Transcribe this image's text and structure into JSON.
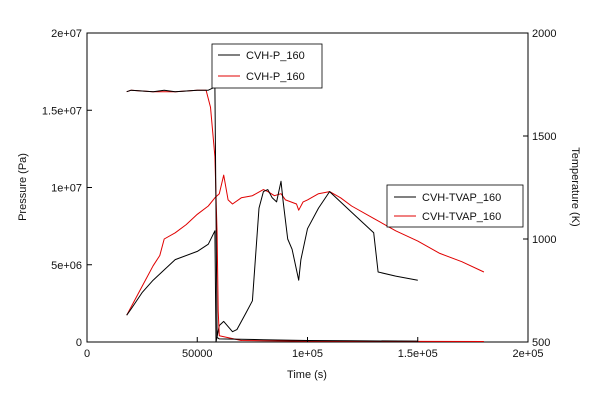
{
  "chart_data": {
    "type": "line",
    "xlabel": "Time (s)",
    "ylabel": "Pressure (Pa)",
    "y2label": "Temperature (K)",
    "xlim": [
      0,
      200000
    ],
    "ylim": [
      0,
      20000000
    ],
    "y2lim": [
      500,
      2000
    ],
    "x_ticks": [
      {
        "v": 0,
        "label": "0"
      },
      {
        "v": 50000,
        "label": "50000"
      },
      {
        "v": 100000,
        "label": "1e+05"
      },
      {
        "v": 150000,
        "label": "1.5e+05"
      },
      {
        "v": 200000,
        "label": "2e+05"
      }
    ],
    "y_ticks": [
      {
        "v": 0,
        "label": "0"
      },
      {
        "v": 5000000,
        "label": "5e+06"
      },
      {
        "v": 10000000,
        "label": "1e+07"
      },
      {
        "v": 15000000,
        "label": "1.5e+07"
      },
      {
        "v": 20000000,
        "label": "2e+07"
      }
    ],
    "y2_ticks": [
      {
        "v": 500,
        "label": "500"
      },
      {
        "v": 1000,
        "label": "1000"
      },
      {
        "v": 1500,
        "label": "1500"
      },
      {
        "v": 2000,
        "label": "2000"
      }
    ],
    "grid": false,
    "legends": [
      {
        "placement": "top-center",
        "entries": [
          {
            "name": "CVH-P_160",
            "color": "#000000"
          },
          {
            "name": "CVH-P_160",
            "color": "#e00000"
          }
        ]
      },
      {
        "placement": "right",
        "entries": [
          {
            "name": "CVH-TVAP_160",
            "color": "#000000"
          },
          {
            "name": "CVH-TVAP_160",
            "color": "#e00000"
          }
        ]
      }
    ],
    "series": [
      {
        "name": "CVH-P_160",
        "axis": "left",
        "color": "#000000",
        "x": [
          18000,
          20000,
          30000,
          35000,
          40000,
          50000,
          55000,
          58000,
          59000,
          60000,
          80000,
          100000,
          120000,
          150000
        ],
        "y": [
          16200000,
          16300000,
          16200000,
          16300000,
          16200000,
          16300000,
          16300000,
          16500000,
          300000,
          200000,
          150000,
          100000,
          80000,
          60000
        ]
      },
      {
        "name": "CVH-P_160",
        "axis": "left",
        "color": "#e00000",
        "x": [
          18000,
          20000,
          30000,
          40000,
          50000,
          54000,
          56000,
          58000,
          59000,
          59500,
          60000,
          70000,
          80000,
          100000,
          120000,
          150000,
          180000
        ],
        "y": [
          16200000,
          16300000,
          16200000,
          16200000,
          16300000,
          16300000,
          15200000,
          12000000,
          7000000,
          2000000,
          400000,
          100000,
          80000,
          60000,
          50000,
          40000,
          30000
        ]
      },
      {
        "name": "CVH-TVAP_160",
        "axis": "right",
        "color": "#000000",
        "x": [
          18000,
          20000,
          25000,
          30000,
          35000,
          40000,
          50000,
          55000,
          58000,
          58500,
          60000,
          62000,
          66000,
          68000,
          72000,
          75000,
          78000,
          80000,
          82000,
          84000,
          86000,
          88000,
          89000,
          91000,
          93000,
          95000,
          96000,
          97000,
          100000,
          105000,
          110000,
          120000,
          130000,
          132000,
          140000,
          150000
        ],
        "y": [
          630,
          660,
          740,
          800,
          850,
          900,
          940,
          975,
          1040,
          500,
          580,
          600,
          550,
          560,
          640,
          700,
          1150,
          1230,
          1240,
          1200,
          1180,
          1280,
          1180,
          1000,
          950,
          850,
          800,
          900,
          1050,
          1150,
          1230,
          1130,
          1030,
          840,
          820,
          800
        ]
      },
      {
        "name": "CVH-TVAP_160",
        "axis": "right",
        "color": "#e00000",
        "x": [
          18000,
          20000,
          25000,
          30000,
          33000,
          35000,
          40000,
          45000,
          50000,
          55000,
          58000,
          60000,
          62000,
          64000,
          66000,
          70000,
          75000,
          80000,
          82000,
          85000,
          88000,
          90000,
          95000,
          96000,
          98000,
          100000,
          105000,
          110000,
          115000,
          120000,
          130000,
          140000,
          150000,
          160000,
          170000,
          180000
        ],
        "y": [
          630,
          670,
          770,
          870,
          920,
          1000,
          1030,
          1070,
          1120,
          1160,
          1200,
          1220,
          1310,
          1190,
          1170,
          1200,
          1210,
          1240,
          1230,
          1210,
          1220,
          1190,
          1170,
          1140,
          1180,
          1190,
          1220,
          1230,
          1200,
          1160,
          1100,
          1040,
          990,
          930,
          890,
          840
        ]
      }
    ]
  }
}
